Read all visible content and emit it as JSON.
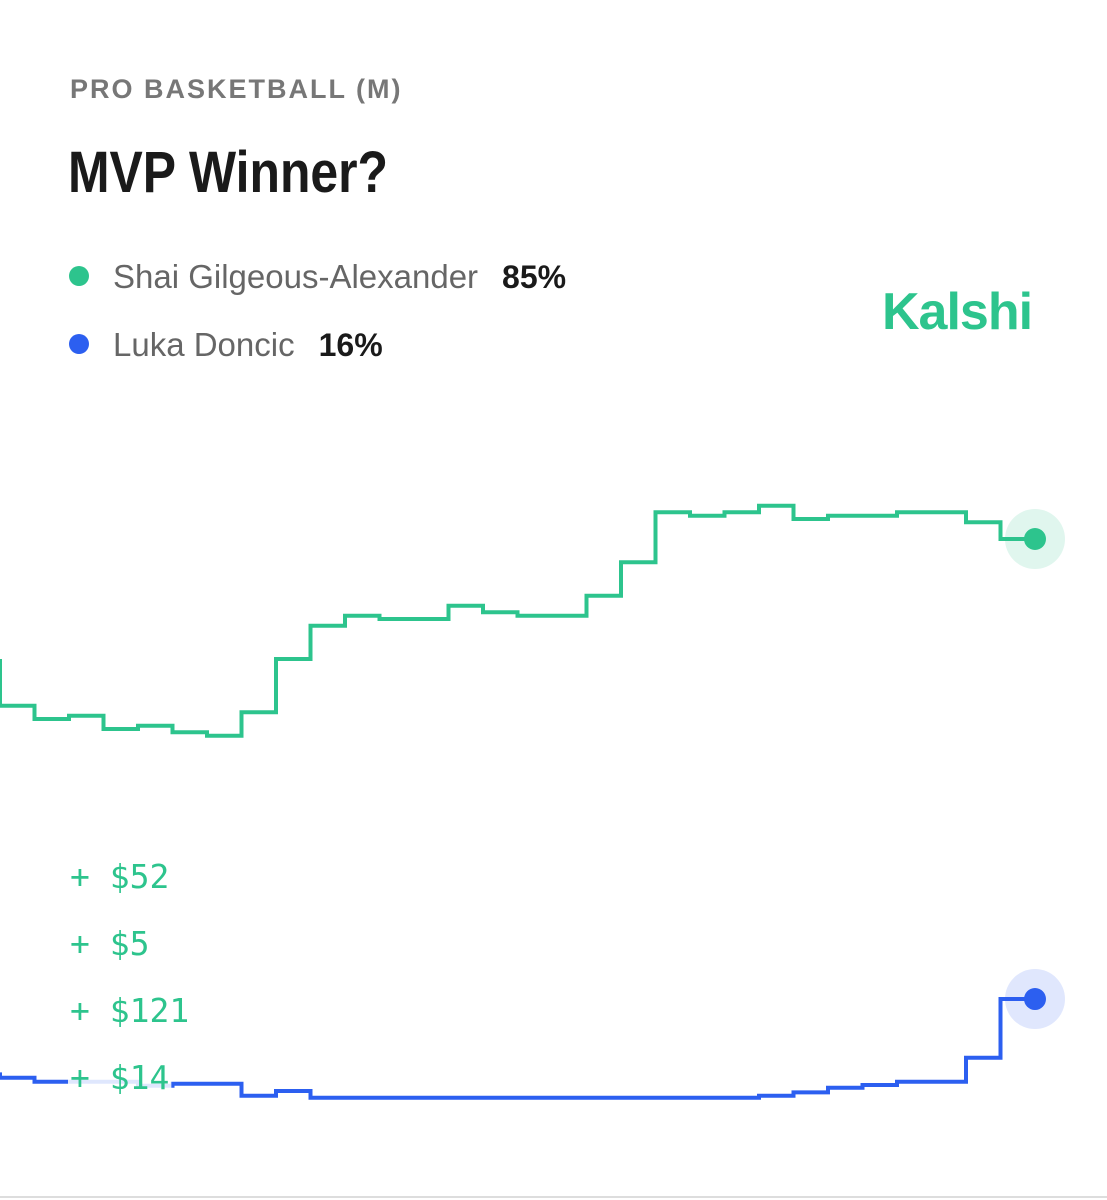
{
  "chart_data": {
    "type": "step-line",
    "kicker": "PRO BASKETBALL (M)",
    "title": "MVP Winner?",
    "brand": "Kalshi",
    "series": [
      {
        "name": "Shai Gilgeous-Alexander",
        "color": "#2dc48d",
        "values": [
          67,
          60,
          58,
          58.5,
          56.5,
          57,
          56,
          55.5,
          59,
          67,
          72,
          73.5,
          73,
          73,
          75,
          74,
          73.5,
          73.5,
          76.5,
          81.5,
          89,
          88.5,
          89,
          90,
          88,
          88.5,
          88.5,
          89,
          89,
          87.5,
          85
        ],
        "value_labels": [
          null,
          null,
          null,
          null,
          null,
          null,
          null,
          null,
          null,
          null,
          null,
          null,
          null,
          null,
          null,
          null,
          null,
          null,
          null,
          null,
          null,
          null,
          null,
          null,
          null,
          null,
          null,
          null,
          null,
          null,
          "85%"
        ]
      },
      {
        "name": "Luka Doncic",
        "color": "#2c5ff0",
        "values": [
          5,
          4.2,
          3.6,
          3.6,
          3.6,
          3,
          3.3,
          3.3,
          1.5,
          2.2,
          1.2,
          1.2,
          1.2,
          1.2,
          1.2,
          1.2,
          1.2,
          1.2,
          1.2,
          1.2,
          1.2,
          1.2,
          1.2,
          1.5,
          2,
          2.7,
          3.1,
          3.6,
          3.6,
          7.2,
          16
        ],
        "value_labels": [
          null,
          null,
          null,
          null,
          null,
          null,
          null,
          null,
          null,
          null,
          null,
          null,
          null,
          null,
          null,
          null,
          null,
          null,
          null,
          null,
          null,
          null,
          null,
          null,
          null,
          null,
          null,
          null,
          null,
          null,
          "16%"
        ]
      }
    ],
    "annotations": [
      "+ $52",
      "+ $5",
      "+ $121",
      "+ $14"
    ]
  }
}
